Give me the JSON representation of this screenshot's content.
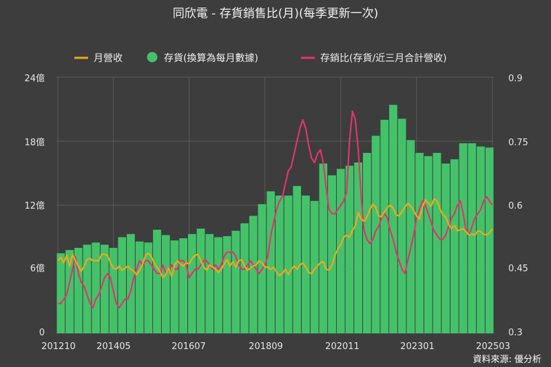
{
  "chart_data": {
    "type": "bar+line",
    "title": "同欣電 - 存貨銷售比(月)(每季更新一次)",
    "source": "資料來源: 優分析",
    "legend": {
      "revenue": "月營收",
      "inventory": "存貨(換算為每月數據)",
      "ratio": "存銷比(存貨/近三月合計營收)"
    },
    "colors": {
      "revenue": "#f0a81c",
      "inventory": "#44c26a",
      "ratio": "#e0356e",
      "grid": "#5a5a5a",
      "background": "#3d3d3d"
    },
    "y_left": {
      "ylim": [
        0,
        24
      ],
      "ticks": [
        "0",
        "6億",
        "12億",
        "18億",
        "24億"
      ]
    },
    "y_right": {
      "ylim": [
        0.3,
        0.9
      ],
      "ticks": [
        "0.3",
        "0.45",
        "0.6",
        "0.75",
        "0.9"
      ]
    },
    "x_ticks": [
      "201210",
      "201405",
      "201607",
      "201809",
      "202011",
      "202301",
      "202503"
    ],
    "start_month": "2012-10",
    "months": 150,
    "inventory_quarterly": [
      7.5,
      7.8,
      8.0,
      8.3,
      8.5,
      8.3,
      8.0,
      9.0,
      9.3,
      8.6,
      8.5,
      9.7,
      9.2,
      8.7,
      8.9,
      9.3,
      9.8,
      9.3,
      9.0,
      9.1,
      9.6,
      10.3,
      11.0,
      12.1,
      13.3,
      12.9,
      12.9,
      13.8,
      12.9,
      12.4,
      15.9,
      14.8,
      15.4,
      15.7,
      16.0,
      16.9,
      18.5,
      20.0,
      21.4,
      20.1,
      18.1,
      16.9,
      16.6,
      16.9,
      15.9,
      16.3,
      17.8,
      17.8,
      17.5,
      17.4
    ],
    "revenue": [
      6.8,
      7.1,
      6.6,
      7.3,
      6.3,
      7.4,
      6.8,
      6.3,
      5.8,
      6.3,
      6.9,
      7.0,
      6.8,
      6.8,
      6.8,
      7.4,
      7.4,
      7.3,
      6.6,
      6.1,
      6.0,
      6.3,
      5.9,
      6.1,
      6.3,
      6.0,
      5.8,
      5.5,
      5.9,
      6.4,
      7.3,
      7.5,
      7.2,
      6.6,
      6.2,
      5.8,
      5.2,
      5.5,
      6.1,
      5.3,
      6.4,
      6.8,
      6.5,
      6.3,
      6.6,
      6.5,
      7.0,
      7.3,
      7.4,
      6.8,
      6.2,
      5.9,
      6.4,
      6.2,
      6.0,
      5.7,
      6.0,
      6.5,
      6.9,
      6.3,
      6.7,
      6.2,
      6.8,
      6.9,
      6.3,
      5.9,
      6.1,
      6.3,
      6.4,
      6.8,
      6.6,
      6.2,
      6.2,
      6.0,
      6.2,
      5.7,
      5.4,
      5.6,
      6.0,
      5.5,
      6.0,
      6.3,
      6.0,
      6.4,
      6.6,
      6.2,
      5.7,
      5.6,
      6.0,
      6.3,
      6.6,
      6.7,
      6.0,
      5.9,
      6.4,
      7.3,
      7.9,
      8.3,
      9.0,
      9.2,
      9.0,
      9.6,
      10.1,
      11.3,
      10.7,
      10.5,
      10.9,
      11.6,
      12.1,
      11.8,
      11.0,
      10.9,
      11.4,
      11.8,
      12.0,
      11.7,
      11.1,
      11.0,
      11.4,
      11.8,
      12.2,
      11.9,
      11.5,
      11.0,
      10.7,
      11.8,
      12.5,
      12.2,
      11.9,
      12.6,
      12.4,
      11.7,
      11.1,
      10.9,
      10.2,
      9.8,
      10.1,
      9.6,
      9.7,
      9.8,
      9.5,
      9.2,
      9.3,
      9.2,
      9.6,
      9.5,
      9.3,
      9.2,
      9.4,
      9.8
    ],
    "ratio": [
      0.37,
      0.37,
      0.38,
      0.39,
      0.42,
      0.45,
      0.48,
      0.44,
      0.42,
      0.41,
      0.39,
      0.37,
      0.36,
      0.38,
      0.39,
      0.41,
      0.43,
      0.44,
      0.43,
      0.4,
      0.37,
      0.36,
      0.37,
      0.38,
      0.38,
      0.4,
      0.43,
      0.45,
      0.47,
      0.46,
      0.47,
      0.47,
      0.46,
      0.45,
      0.44,
      0.44,
      0.46,
      0.44,
      0.45,
      0.46,
      0.45,
      0.45,
      0.47,
      0.47,
      0.46,
      0.43,
      0.44,
      0.45,
      0.45,
      0.46,
      0.47,
      0.47,
      0.46,
      0.45,
      0.46,
      0.45,
      0.46,
      0.48,
      0.49,
      0.49,
      0.49,
      0.48,
      0.46,
      0.45,
      0.45,
      0.46,
      0.47,
      0.46,
      0.45,
      0.44,
      0.45,
      0.46,
      0.48,
      0.53,
      0.56,
      0.59,
      0.61,
      0.62,
      0.65,
      0.68,
      0.69,
      0.72,
      0.75,
      0.78,
      0.8,
      0.78,
      0.74,
      0.71,
      0.7,
      0.72,
      0.73,
      0.7,
      0.64,
      0.59,
      0.58,
      0.58,
      0.59,
      0.6,
      0.61,
      0.63,
      0.75,
      0.82,
      0.8,
      0.73,
      0.62,
      0.54,
      0.52,
      0.51,
      0.52,
      0.54,
      0.55,
      0.57,
      0.58,
      0.57,
      0.54,
      0.52,
      0.49,
      0.47,
      0.45,
      0.44,
      0.47,
      0.5,
      0.53,
      0.57,
      0.59,
      0.61,
      0.6,
      0.58,
      0.56,
      0.54,
      0.53,
      0.52,
      0.52,
      0.53,
      0.55,
      0.57,
      0.58,
      0.6,
      0.61,
      0.58,
      0.54,
      0.53,
      0.55,
      0.57,
      0.58,
      0.59,
      0.61,
      0.62,
      0.61,
      0.6
    ]
  }
}
